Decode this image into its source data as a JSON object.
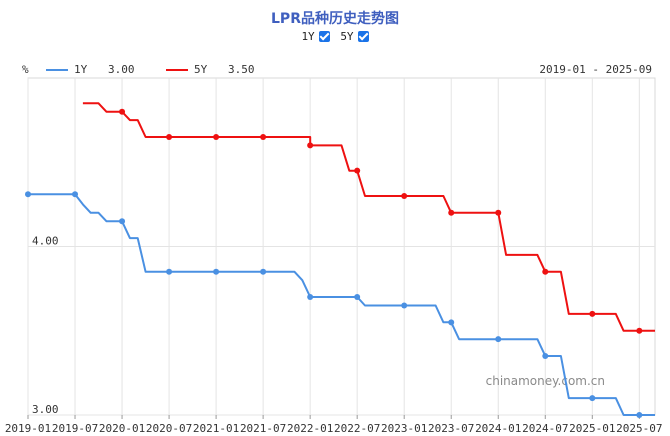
{
  "title": "LPR品种历史走势图",
  "toggles": [
    {
      "label": "1Y",
      "checked": true
    },
    {
      "label": "5Y",
      "checked": true
    }
  ],
  "unit_label": "%",
  "legend": [
    {
      "name": "1Y",
      "value": "3.00",
      "color": "#4a90e2"
    },
    {
      "name": "5Y",
      "value": "3.50",
      "color": "#ee1111"
    }
  ],
  "date_range": "2019-01 - 2025-09",
  "watermark": "chinamoney.com.cn",
  "chart_data": {
    "type": "line",
    "xlabel": "",
    "ylabel": "%",
    "x_range": [
      "2019-01",
      "2025-09"
    ],
    "ylim": [
      3.0,
      5.0
    ],
    "y_ticks": [
      "3.00",
      "4.00"
    ],
    "x_ticks": [
      "2019-01",
      "2019-07",
      "2020-01",
      "2020-07",
      "2021-01",
      "2021-07",
      "2022-01",
      "2022-07",
      "2023-01",
      "2023-07",
      "2024-01",
      "2024-07",
      "2025-01",
      "2025-07"
    ],
    "grid": true,
    "legend_position": "top-left",
    "series": [
      {
        "name": "1Y",
        "color": "#4a90e2",
        "points": [
          {
            "x": "2019-01",
            "y": 4.31,
            "marker": true
          },
          {
            "x": "2019-07",
            "y": 4.31,
            "marker": true
          },
          {
            "x": "2019-08",
            "y": 4.25,
            "marker": false
          },
          {
            "x": "2019-09",
            "y": 4.2,
            "marker": false
          },
          {
            "x": "2019-10",
            "y": 4.2,
            "marker": false
          },
          {
            "x": "2019-11",
            "y": 4.15,
            "marker": false
          },
          {
            "x": "2020-01",
            "y": 4.15,
            "marker": true
          },
          {
            "x": "2020-02",
            "y": 4.05,
            "marker": false
          },
          {
            "x": "2020-03",
            "y": 4.05,
            "marker": false
          },
          {
            "x": "2020-04",
            "y": 3.85,
            "marker": false
          },
          {
            "x": "2020-07",
            "y": 3.85,
            "marker": true
          },
          {
            "x": "2021-01",
            "y": 3.85,
            "marker": true
          },
          {
            "x": "2021-07",
            "y": 3.85,
            "marker": true
          },
          {
            "x": "2021-11",
            "y": 3.85,
            "marker": false
          },
          {
            "x": "2021-12",
            "y": 3.8,
            "marker": false
          },
          {
            "x": "2022-01",
            "y": 3.7,
            "marker": true
          },
          {
            "x": "2022-07",
            "y": 3.7,
            "marker": true
          },
          {
            "x": "2022-08",
            "y": 3.65,
            "marker": false
          },
          {
            "x": "2023-01",
            "y": 3.65,
            "marker": true
          },
          {
            "x": "2023-05",
            "y": 3.65,
            "marker": false
          },
          {
            "x": "2023-06",
            "y": 3.55,
            "marker": false
          },
          {
            "x": "2023-07",
            "y": 3.55,
            "marker": true
          },
          {
            "x": "2023-08",
            "y": 3.45,
            "marker": false
          },
          {
            "x": "2024-01",
            "y": 3.45,
            "marker": true
          },
          {
            "x": "2024-06",
            "y": 3.45,
            "marker": false
          },
          {
            "x": "2024-07",
            "y": 3.35,
            "marker": true
          },
          {
            "x": "2024-09",
            "y": 3.35,
            "marker": false
          },
          {
            "x": "2024-10",
            "y": 3.1,
            "marker": false
          },
          {
            "x": "2025-01",
            "y": 3.1,
            "marker": true
          },
          {
            "x": "2025-04",
            "y": 3.1,
            "marker": false
          },
          {
            "x": "2025-05",
            "y": 3.0,
            "marker": false
          },
          {
            "x": "2025-07",
            "y": 3.0,
            "marker": true
          },
          {
            "x": "2025-09",
            "y": 3.0,
            "marker": false
          }
        ]
      },
      {
        "name": "5Y",
        "color": "#ee1111",
        "points": [
          {
            "x": "2019-08",
            "y": 4.85,
            "marker": false
          },
          {
            "x": "2019-10",
            "y": 4.85,
            "marker": false
          },
          {
            "x": "2019-11",
            "y": 4.8,
            "marker": false
          },
          {
            "x": "2020-01",
            "y": 4.8,
            "marker": true
          },
          {
            "x": "2020-02",
            "y": 4.75,
            "marker": false
          },
          {
            "x": "2020-03",
            "y": 4.75,
            "marker": false
          },
          {
            "x": "2020-04",
            "y": 4.65,
            "marker": false
          },
          {
            "x": "2020-07",
            "y": 4.65,
            "marker": true
          },
          {
            "x": "2021-01",
            "y": 4.65,
            "marker": true
          },
          {
            "x": "2021-07",
            "y": 4.65,
            "marker": true
          },
          {
            "x": "2022-01",
            "y": 4.65,
            "marker": false
          },
          {
            "x": "2022-01",
            "y": 4.6,
            "marker": true
          },
          {
            "x": "2022-05",
            "y": 4.6,
            "marker": false
          },
          {
            "x": "2022-06",
            "y": 4.45,
            "marker": false
          },
          {
            "x": "2022-07",
            "y": 4.45,
            "marker": true
          },
          {
            "x": "2022-08",
            "y": 4.3,
            "marker": false
          },
          {
            "x": "2023-01",
            "y": 4.3,
            "marker": true
          },
          {
            "x": "2023-06",
            "y": 4.3,
            "marker": false
          },
          {
            "x": "2023-07",
            "y": 4.2,
            "marker": true
          },
          {
            "x": "2024-01",
            "y": 4.2,
            "marker": true
          },
          {
            "x": "2024-02",
            "y": 3.95,
            "marker": false
          },
          {
            "x": "2024-06",
            "y": 3.95,
            "marker": false
          },
          {
            "x": "2024-07",
            "y": 3.85,
            "marker": true
          },
          {
            "x": "2024-09",
            "y": 3.85,
            "marker": false
          },
          {
            "x": "2024-10",
            "y": 3.6,
            "marker": false
          },
          {
            "x": "2025-01",
            "y": 3.6,
            "marker": true
          },
          {
            "x": "2025-04",
            "y": 3.6,
            "marker": false
          },
          {
            "x": "2025-05",
            "y": 3.5,
            "marker": false
          },
          {
            "x": "2025-07",
            "y": 3.5,
            "marker": true
          },
          {
            "x": "2025-09",
            "y": 3.5,
            "marker": false
          }
        ]
      }
    ]
  }
}
